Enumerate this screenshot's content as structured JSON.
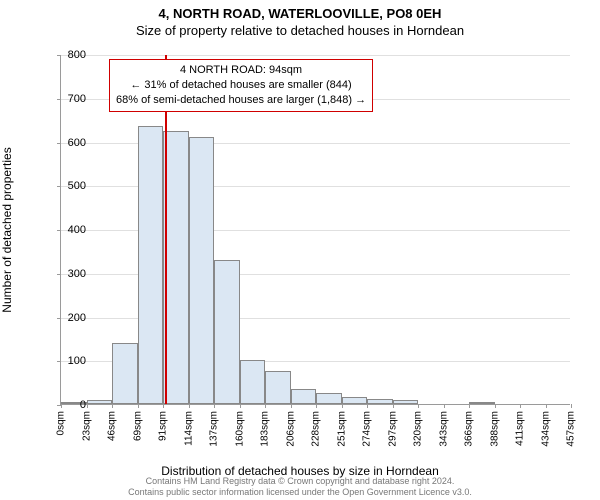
{
  "title": "4, NORTH ROAD, WATERLOOVILLE, PO8 0EH",
  "subtitle": "Size of property relative to detached houses in Horndean",
  "yAxis": {
    "label": "Number of detached properties",
    "min": 0,
    "max": 800,
    "step": 100,
    "ticks": [
      0,
      100,
      200,
      300,
      400,
      500,
      600,
      700,
      800
    ],
    "gridColor": "#e0e0e0",
    "axisColor": "#9a9a9a",
    "tickFontSize": 11,
    "labelFontSize": 12
  },
  "xAxis": {
    "label": "Distribution of detached houses by size in Horndean",
    "tickLabels": [
      "0sqm",
      "23sqm",
      "46sqm",
      "69sqm",
      "91sqm",
      "114sqm",
      "137sqm",
      "160sqm",
      "183sqm",
      "206sqm",
      "228sqm",
      "251sqm",
      "274sqm",
      "297sqm",
      "320sqm",
      "343sqm",
      "366sqm",
      "388sqm",
      "411sqm",
      "434sqm",
      "457sqm"
    ],
    "tickFontSize": 10,
    "labelFontSize": 12
  },
  "chart": {
    "type": "histogram",
    "barFill": "#dbe7f3",
    "barStroke": "#888888",
    "backgroundColor": "#ffffff",
    "values": [
      5,
      10,
      140,
      635,
      625,
      610,
      330,
      100,
      75,
      35,
      25,
      15,
      12,
      10,
      0,
      0,
      5,
      0,
      0,
      0
    ],
    "markerValue": 94,
    "markerColor": "#d00000",
    "binStart": 0,
    "binWidth": 23,
    "xMax": 460
  },
  "annotation": {
    "line1": "4 NORTH ROAD: 94sqm",
    "line2": "← 31% of detached houses are smaller (844)",
    "line3": "68% of semi-detached houses are larger (1,848) →",
    "borderColor": "#d00000",
    "bgColor": "#ffffff",
    "fontSize": 11
  },
  "footer": {
    "line1": "Contains HM Land Registry data © Crown copyright and database right 2024.",
    "line2": "Contains public sector information licensed under the Open Government Licence v3.0.",
    "color": "#777777",
    "fontSize": 9
  }
}
